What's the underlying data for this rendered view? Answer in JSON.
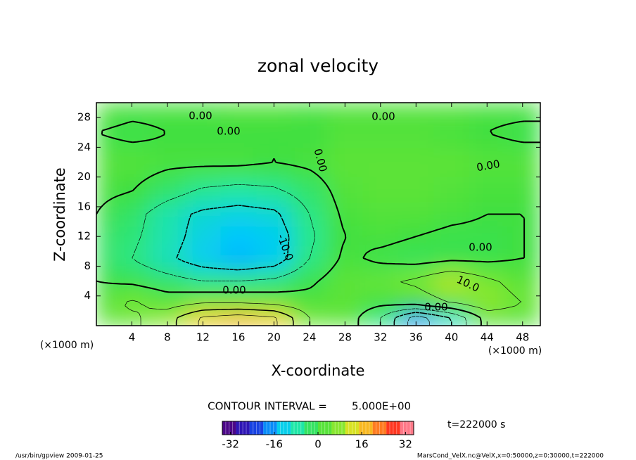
{
  "chart_data": {
    "type": "contour",
    "title": "zonal velocity",
    "x_label": "X-coordinate",
    "y_label": "Z-coordinate",
    "x_unit": "(×1000 m)",
    "y_unit": "(×1000 m)",
    "xlim": [
      0,
      50
    ],
    "ylim": [
      0,
      30
    ],
    "xticks": [
      4,
      8,
      12,
      16,
      20,
      24,
      28,
      32,
      36,
      40,
      44,
      48
    ],
    "yticks": [
      4,
      8,
      12,
      16,
      20,
      24,
      28
    ],
    "x": [
      0,
      4,
      8,
      12,
      16,
      20,
      24,
      28,
      32,
      36,
      40,
      44,
      48
    ],
    "y": [
      1,
      3,
      6,
      9,
      12,
      15,
      18,
      22,
      26,
      29
    ],
    "z": [
      [
        3,
        4,
        8,
        16,
        18,
        16,
        5,
        3,
        -5,
        -18,
        -10,
        2,
        2
      ],
      [
        2,
        6,
        3,
        5,
        5,
        4,
        2,
        3,
        1,
        2,
        5,
        8,
        5
      ],
      [
        0,
        -1,
        -3,
        -5,
        -5,
        -4,
        -1,
        3,
        4,
        6,
        10,
        6,
        3
      ],
      [
        -2,
        -5,
        -9,
        -13,
        -15,
        -13,
        -5,
        1,
        -1,
        -2,
        -1,
        -1,
        0
      ],
      [
        -2,
        -4,
        -8,
        -12,
        -14,
        -13,
        -6,
        0,
        1,
        0,
        -1,
        -1,
        0
      ],
      [
        0,
        -3,
        -8,
        -11,
        -12,
        -11,
        -5,
        1,
        2,
        2,
        1,
        0,
        0
      ],
      [
        1,
        0,
        -3,
        -6,
        -7,
        -6,
        -3,
        2,
        3,
        3,
        2,
        1,
        1
      ],
      [
        2,
        2,
        1,
        1,
        1,
        0,
        1,
        3,
        3,
        3,
        3,
        2,
        2
      ],
      [
        0,
        -1,
        0,
        0,
        0,
        0,
        0,
        2,
        2,
        2,
        1,
        0,
        -1
      ],
      [
        2,
        1,
        1,
        1,
        2,
        2,
        1,
        2,
        2,
        2,
        2,
        1,
        1
      ]
    ],
    "contour_interval_title": "CONTOUR INTERVAL =",
    "contour_interval": {
      "value": 5,
      "label": "5.000E+00"
    },
    "contour_labels": [
      {
        "value": 0,
        "label": "0.00"
      },
      {
        "value": 0,
        "label": "0.00"
      },
      {
        "value": 0,
        "label": "0.00"
      },
      {
        "value": 0,
        "label": "0.00"
      },
      {
        "value": 0,
        "label": "0.00"
      },
      {
        "value": 0,
        "label": "0.00"
      },
      {
        "value": 0,
        "label": "0.00"
      },
      {
        "value": 0,
        "label": "0.00"
      },
      {
        "value": -10,
        "label": "-10.0"
      },
      {
        "value": 10,
        "label": "10.0"
      }
    ],
    "colorbar": {
      "lim": [
        -35,
        35
      ],
      "ticks": [
        -32,
        -16,
        0,
        16,
        32
      ]
    },
    "colormap": [
      "#5a0070",
      "#3010b0",
      "#1050f0",
      "#00c8ff",
      "#20e8a0",
      "#40e040",
      "#80e830",
      "#f0e020",
      "#ff9020",
      "#ff3020",
      "#ffa0c0"
    ],
    "time_label": "t=222000 s",
    "footer_left": "/usr/bin/gpview  2009-01-25",
    "footer_right": "MarsCond_VelX.nc@VelX,x=0:50000,z=0:30000,t=222000"
  }
}
